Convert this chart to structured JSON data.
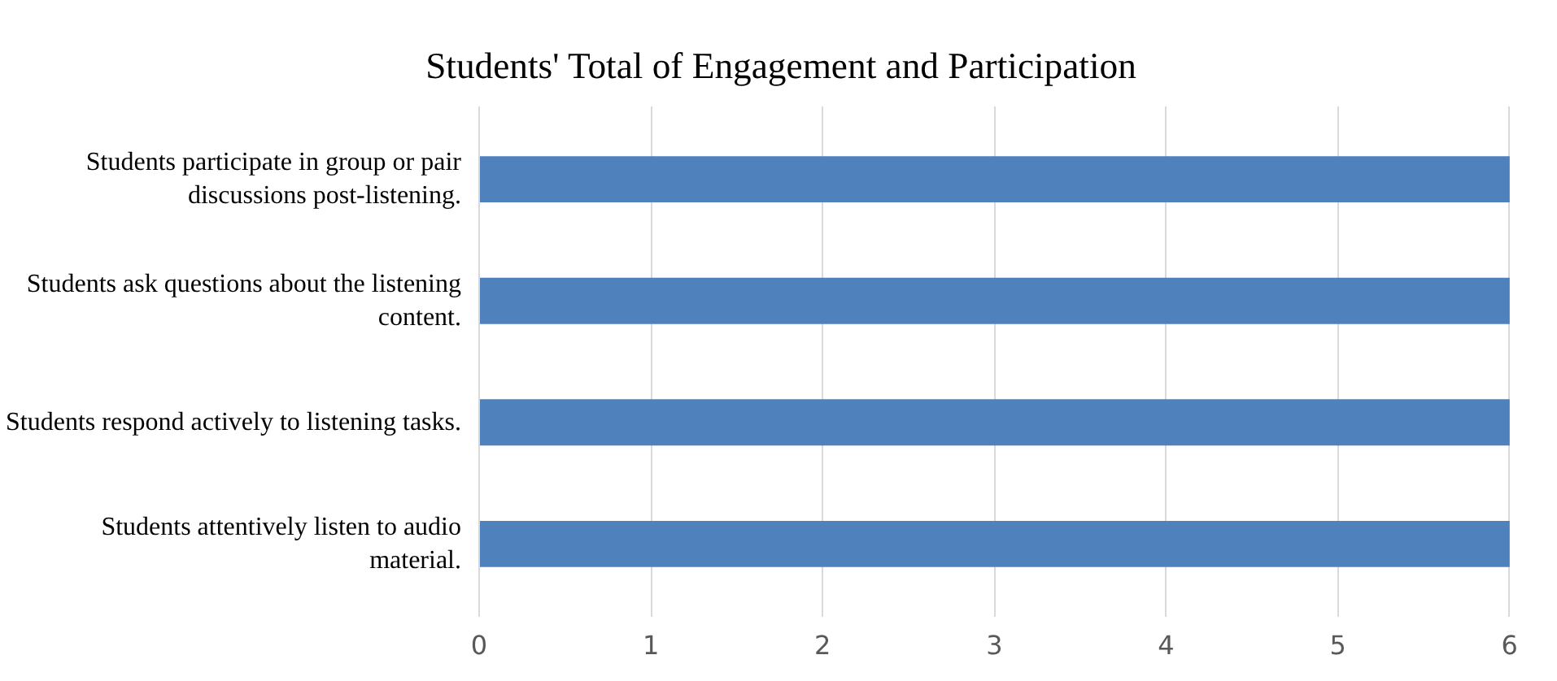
{
  "chart_data": {
    "type": "bar",
    "orientation": "horizontal",
    "title": "Students' Total of Engagement and Participation",
    "categories": [
      "Students participate in group or pair discussions post-listening.",
      "Students ask questions about the listening content.",
      "Students respond actively to listening tasks.",
      "Students attentively listen to audio material."
    ],
    "values": [
      6,
      6,
      6,
      6
    ],
    "color": "#4f81bd",
    "xlim": [
      0,
      6
    ],
    "xticks": [
      0,
      1,
      2,
      3,
      4,
      5,
      6
    ],
    "grid": "x"
  }
}
